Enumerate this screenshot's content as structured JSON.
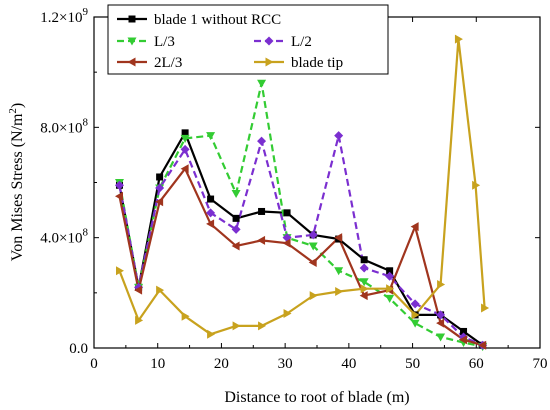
{
  "chart_data": {
    "type": "line",
    "xlabel": "Distance to root of blade (m)",
    "ylabel_main": "Von Mises Stress (N/m",
    "ylabel_sup": "2",
    "ylabel_tail": ")",
    "xlim": [
      0,
      70
    ],
    "ylim": [
      0,
      1200000000.0
    ],
    "x_ticks": [
      0,
      10,
      20,
      30,
      40,
      50,
      60,
      70
    ],
    "x_tick_labels": [
      "0",
      "10",
      "20",
      "30",
      "40",
      "50",
      "60",
      "70"
    ],
    "y_ticks": [
      {
        "value": 0,
        "mantissa": "0.0",
        "exp": ""
      },
      {
        "value": 400000000,
        "mantissa": "4.0×10",
        "exp": "8"
      },
      {
        "value": 800000000,
        "mantissa": "8.0×10",
        "exp": "8"
      },
      {
        "value": 1200000000,
        "mantissa": "1.2×10",
        "exp": "9"
      }
    ],
    "grid": false,
    "legend_position": "top-inside",
    "series": [
      {
        "name": "blade 1 without RCC",
        "color": "#000000",
        "dash": "",
        "marker": "square",
        "x": [
          4,
          7,
          10.3,
          14.3,
          18.3,
          22.3,
          26.3,
          30.3,
          34.4,
          38.4,
          42.4,
          46.4,
          50.4,
          54.4,
          58,
          61
        ],
        "y": [
          590000000,
          220000000,
          620000000,
          780000000,
          540000000,
          470000000,
          495000000,
          490000000,
          410000000,
          395000000,
          320000000,
          280000000,
          120000000,
          120000000,
          60000000,
          10000000
        ]
      },
      {
        "name": "L/3",
        "color": "#33cc33",
        "dash": "7,4",
        "marker": "triangle-down",
        "x": [
          4,
          7,
          10.3,
          14.3,
          18.3,
          22.3,
          26.3,
          30.3,
          34.4,
          38.4,
          42.4,
          46.4,
          50.4,
          54.4,
          58,
          61
        ],
        "y": [
          600000000,
          220000000,
          580000000,
          760000000,
          770000000,
          560000000,
          960000000,
          400000000,
          370000000,
          280000000,
          240000000,
          180000000,
          90000000,
          40000000,
          20000000,
          5000000
        ]
      },
      {
        "name": "L/2",
        "color": "#7b2fd0",
        "dash": "7,4",
        "marker": "diamond",
        "x": [
          4,
          7,
          10.3,
          14.3,
          18.3,
          22.3,
          26.3,
          30.3,
          34.4,
          38.4,
          42.4,
          46.4,
          50.4,
          54.4,
          58,
          61
        ],
        "y": [
          590000000,
          220000000,
          580000000,
          720000000,
          490000000,
          430000000,
          750000000,
          400000000,
          410000000,
          770000000,
          290000000,
          260000000,
          160000000,
          120000000,
          40000000,
          10000000
        ]
      },
      {
        "name": "2L/3",
        "color": "#a0351e",
        "dash": "",
        "marker": "triangle-left",
        "x": [
          4,
          7,
          10.3,
          14.3,
          18.3,
          22.3,
          26.3,
          30.3,
          34.4,
          38.4,
          42.4,
          46.4,
          50.4,
          54.4,
          58,
          61
        ],
        "y": [
          550000000,
          210000000,
          530000000,
          650000000,
          450000000,
          370000000,
          390000000,
          380000000,
          310000000,
          400000000,
          190000000,
          210000000,
          440000000,
          90000000,
          30000000,
          10000000
        ]
      },
      {
        "name": "blade tip",
        "color": "#c8a21e",
        "dash": "",
        "marker": "triangle-right",
        "x": [
          4,
          7,
          10.3,
          14.3,
          18.3,
          22.3,
          26.3,
          30.3,
          34.4,
          38.4,
          42.4,
          46.4,
          50.4,
          54.4,
          57.2,
          59.9,
          61.3
        ],
        "y": [
          280000000,
          100000000,
          210000000,
          115000000,
          50000000,
          80000000,
          80000000,
          125000000,
          190000000,
          205000000,
          215000000,
          215000000,
          120000000,
          230000000,
          1120000000,
          590000000,
          145000000
        ]
      }
    ]
  }
}
